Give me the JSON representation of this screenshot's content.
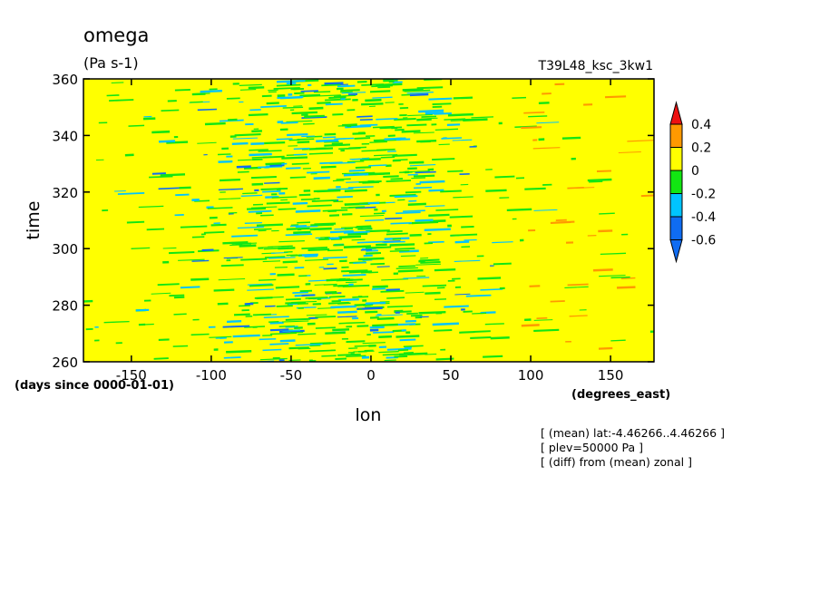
{
  "chart_data": {
    "type": "heatmap",
    "title": "omega",
    "units": "(Pa s-1)",
    "run_label": "T39L48_ksc_3kw1",
    "xlabel": "lon",
    "x_units": "(degrees_east)",
    "ylabel": "time",
    "y_units": "(days since 0000-01-01)",
    "xlim": [
      -180,
      177.2
    ],
    "ylim": [
      260,
      360
    ],
    "x_ticks": [
      -150,
      -100,
      -50,
      0,
      50,
      100,
      150
    ],
    "x_tick_labels": [
      "-150",
      "-100",
      "-50",
      "0",
      "50",
      "100",
      "150"
    ],
    "y_ticks": [
      260,
      280,
      300,
      320,
      340,
      360
    ],
    "y_tick_labels": [
      "260",
      "280",
      "300",
      "320",
      "340",
      "360"
    ],
    "grid": false,
    "colorbar": {
      "levels": [
        -0.6,
        -0.4,
        -0.2,
        0,
        0.2,
        0.4
      ],
      "tick_labels": [
        "-0.6",
        "-0.4",
        "-0.2",
        "0",
        "0.2",
        "0.4"
      ],
      "colors": [
        "#0f6cf2",
        "#00c4ff",
        "#12e612",
        "#ffff00",
        "#ff9900",
        "#ee1111"
      ],
      "extend": "both"
    },
    "field_summary": {
      "background": "values mostly between 0 and 0.2 (yellow) across all longitudes",
      "negative_band": "values between -0.2 and -0.4 (green/cyan) concentrated between about -130 and 80 degrees_east, strongest near -50 to 0",
      "positive_streaks": "sparse streaks between 0.2 and 0.4 (orange), mainly east of 100 degrees_east"
    },
    "annotations": [
      "[ (mean) lat:-4.46266..4.46266 ]",
      "[ plev=50000 Pa ]",
      "[ (diff) from (mean) zonal ]"
    ]
  },
  "colors": {
    "negative_strong": "#0f6cf2",
    "negative_mid": "#00c4ff",
    "negative_weak": "#12e612",
    "neutral": "#ffff00",
    "positive_weak": "#ff9900",
    "positive_strong": "#ee1111"
  }
}
